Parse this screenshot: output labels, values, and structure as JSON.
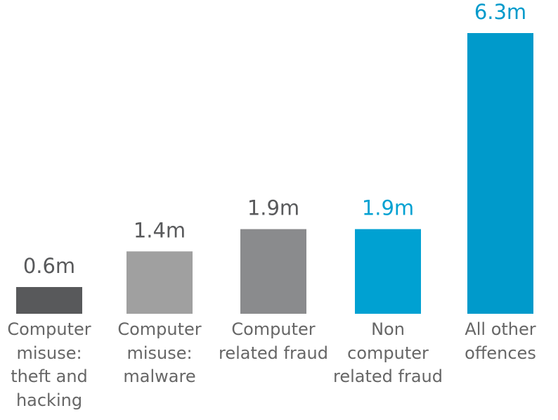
{
  "chart_data": {
    "type": "bar",
    "categories": [
      "Computer\nmisuse:\ntheft and\nhacking",
      "Computer\nmisuse:\nmalware",
      "Computer\nrelated fraud",
      "Non\ncomputer\nrelated fraud",
      "All other\noffences"
    ],
    "values": [
      0.6,
      1.4,
      1.9,
      1.9,
      6.3
    ],
    "data_labels": [
      "0.6m",
      "1.4m",
      "1.9m",
      "1.9m",
      "6.3m"
    ],
    "bar_colors": [
      "#58595b",
      "#a0a0a0",
      "#8a8b8d",
      "#00a1d2",
      "#009acb"
    ],
    "label_colors": [
      "#58595b",
      "#58595b",
      "#58595b",
      "#00a1d2",
      "#009acb"
    ],
    "title": "",
    "xlabel": "",
    "ylabel": "",
    "ylim": [
      0,
      6.3
    ],
    "grid": false,
    "legend": "none"
  }
}
